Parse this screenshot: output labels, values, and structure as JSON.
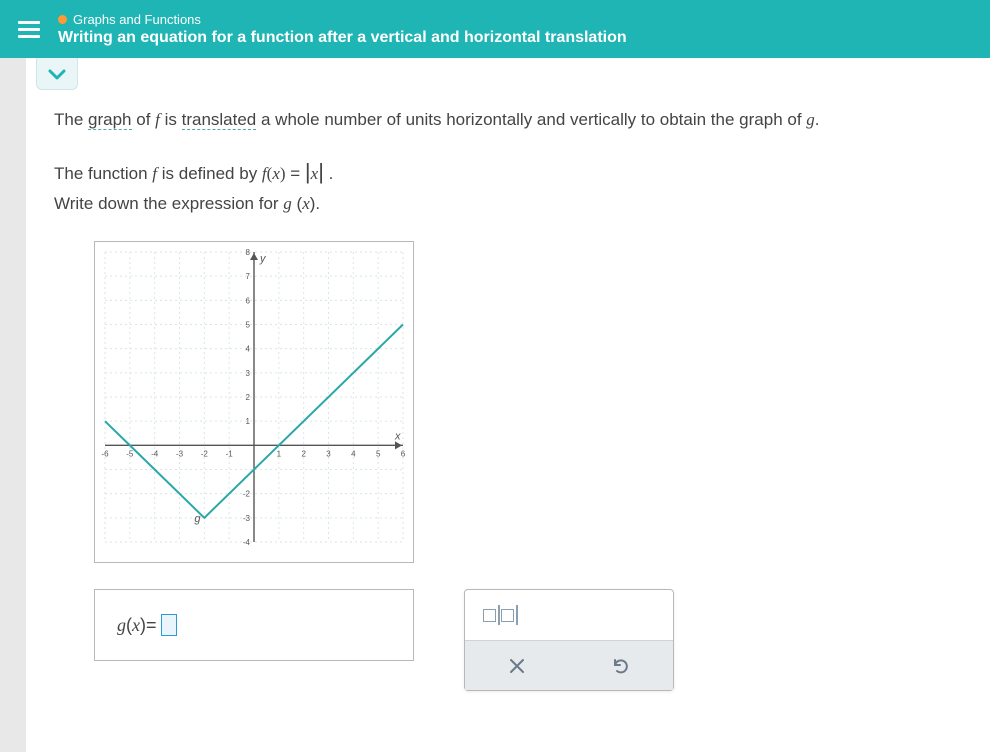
{
  "header": {
    "breadcrumb": "Graphs and Functions",
    "title": "Writing an equation for a function after a vertical and horizontal translation",
    "bg_color": "#1fb5b5",
    "dot_color": "#ff9933"
  },
  "intro": {
    "pre": "The ",
    "link1": "graph",
    "mid1": " of ",
    "f": "f",
    "mid2": " is ",
    "link2": "translated",
    "post": " a whole number of units horizontally and vertically to obtain the graph of ",
    "g": "g",
    "period": "."
  },
  "line2": {
    "pre": "The function ",
    "f": "f",
    "mid": " is defined by ",
    "fx": "f",
    "openp": "(",
    "x1": "x",
    "closep": ")",
    "eq": " = ",
    "abs_open": "|",
    "x2": "x",
    "abs_close": "|",
    "period": " ."
  },
  "line3": {
    "pre": "Write down the expression for ",
    "g": "g",
    "openp": " (",
    "x": "x",
    "closep": ").",
    "period": ""
  },
  "chart": {
    "type": "line",
    "xlim": [
      -6,
      6
    ],
    "ylim": [
      -4,
      8
    ],
    "xtick_step": 1,
    "ytick_step": 1,
    "x_labels": [
      -6,
      -5,
      -4,
      -3,
      -2,
      -1,
      1,
      2,
      3,
      4,
      5,
      6
    ],
    "y_labels": [
      1,
      2,
      3,
      4,
      5,
      6,
      7,
      8,
      -2,
      -3,
      -4
    ],
    "axis_labels": {
      "x": "x",
      "y": "y",
      "g": "g"
    },
    "grid_color": "#d8e6ea",
    "axis_color": "#555555",
    "line_color": "#2aa8a8",
    "line_width": 2,
    "background_color": "#ffffff",
    "tick_label_fontsize": 8,
    "axis_label_fontsize": 11,
    "vertex": [
      -2,
      -3
    ],
    "points": [
      [
        -6,
        1
      ],
      [
        -2,
        -3
      ],
      [
        6,
        5
      ]
    ]
  },
  "answer": {
    "g": "g",
    "openp": "(",
    "x": "x",
    "closep": ")",
    "eq": " = "
  },
  "palette": {
    "abs_tooltip": "absolute value"
  }
}
